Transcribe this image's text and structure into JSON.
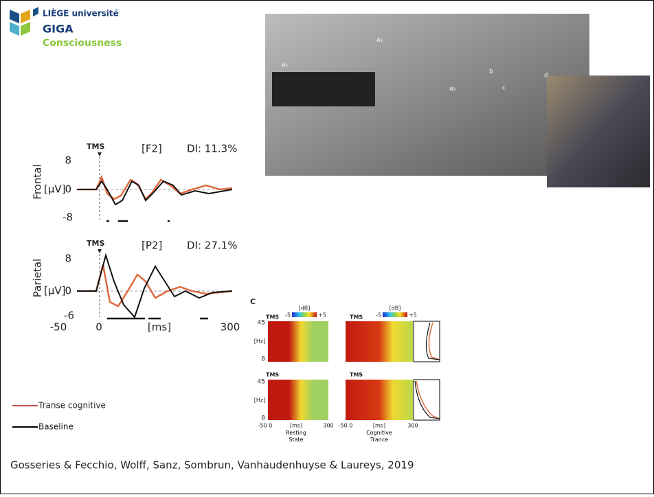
{
  "logo": {
    "line1": "LIÈGE université",
    "line2": "GIGA",
    "line3": "Consciousness"
  },
  "photo": {
    "labels": [
      "a₁",
      "a₂",
      "a₃",
      "b",
      "c",
      "d"
    ]
  },
  "erp": {
    "frontal": {
      "marker": "TMS",
      "channel": "[F2]",
      "di": "DI: 11.3%",
      "region": "Frontal",
      "y_top": "8",
      "unit": "[µV]",
      "y_zero": "0",
      "y_bottom": "-8"
    },
    "parietal": {
      "marker": "TMS",
      "channel": "[P2]",
      "di": "DI: 27.1%",
      "region": "Parietal",
      "y_top": "8",
      "unit": "[µV]",
      "y_zero": "0",
      "y_bottom": "-6"
    },
    "x_axis": {
      "start": "-50",
      "zero": "0",
      "unit": "[ms]",
      "end": "300"
    }
  },
  "tf": {
    "panel_letter": "C",
    "marker": "TMS",
    "colorbar_unit": "[dB]",
    "colorbar_min": "-5",
    "colorbar_max": "+5",
    "y_top": "45",
    "y_unit": "[Hz]",
    "y_bottom": "8",
    "x_start": "-50 0",
    "x_unit": "[ms]",
    "x_end": "300",
    "conditions": [
      "Resting State",
      "Cognitive Trance"
    ]
  },
  "legend": {
    "items": [
      "Transe cognitive",
      "Baseline"
    ]
  },
  "citation": "Gosseries & Fecchio, Wolff, Sanz, Sombrun, Vanhaudenhuyse & Laureys, 2019"
}
